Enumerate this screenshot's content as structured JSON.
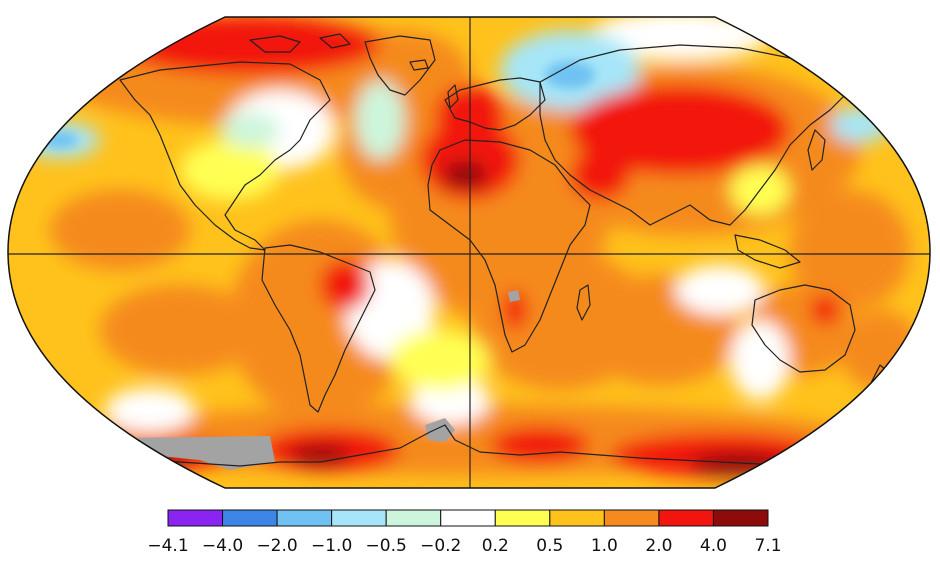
{
  "legend": {
    "ticks": [
      "−4.1",
      "−4.0",
      "−2.0",
      "−1.0",
      "−0.5",
      "−0.2",
      "0.2",
      "0.5",
      "1.0",
      "2.0",
      "4.0",
      "7.1"
    ],
    "bins": [
      {
        "from": -4.1,
        "to": -4.0,
        "color": "#8b24f0"
      },
      {
        "from": -4.0,
        "to": -2.0,
        "color": "#3d86e8"
      },
      {
        "from": -2.0,
        "to": -1.0,
        "color": "#6fc2f2"
      },
      {
        "from": -1.0,
        "to": -0.5,
        "color": "#a6e6f8"
      },
      {
        "from": -0.5,
        "to": -0.2,
        "color": "#cdf5dc"
      },
      {
        "from": -0.2,
        "to": 0.2,
        "color": "#ffffff"
      },
      {
        "from": 0.2,
        "to": 0.5,
        "color": "#ffff52"
      },
      {
        "from": 0.5,
        "to": 1.0,
        "color": "#ffc21c"
      },
      {
        "from": 1.0,
        "to": 2.0,
        "color": "#f58a1e"
      },
      {
        "from": 2.0,
        "to": 4.0,
        "color": "#f2140f"
      },
      {
        "from": 4.0,
        "to": 7.1,
        "color": "#8e0b0b"
      }
    ]
  },
  "map": {
    "projection": "Robinson",
    "missing_data_color": "#a3a3a3"
  }
}
